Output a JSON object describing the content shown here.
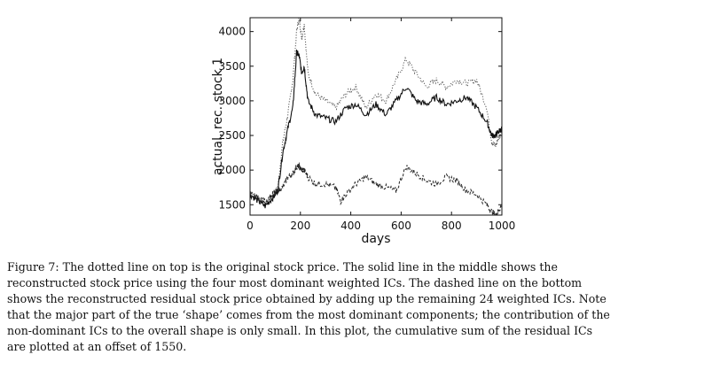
{
  "chart_data": {
    "type": "line",
    "xlabel": "days",
    "ylabel": "actual, rec. stock 1",
    "xlim": [
      0,
      1000
    ],
    "ylim": [
      1350,
      4200
    ],
    "xticks": [
      0,
      200,
      400,
      600,
      800,
      1000
    ],
    "yticks": [
      1500,
      2000,
      2500,
      3000,
      3500,
      4000
    ],
    "grid": false,
    "legend": "none",
    "series": [
      {
        "style": "dotted",
        "color": "#555555",
        "x": [
          0,
          30,
          60,
          90,
          110,
          130,
          150,
          170,
          185,
          195,
          205,
          215,
          230,
          260,
          300,
          340,
          380,
          420,
          460,
          500,
          540,
          580,
          620,
          660,
          700,
          740,
          780,
          820,
          860,
          900,
          940,
          960,
          975,
          985,
          1000
        ],
        "y": [
          1680,
          1600,
          1520,
          1620,
          1750,
          2400,
          2800,
          3300,
          4000,
          4200,
          3900,
          4100,
          3400,
          3100,
          3000,
          2900,
          3100,
          3200,
          2900,
          3100,
          3000,
          3300,
          3600,
          3400,
          3200,
          3300,
          3200,
          3300,
          3250,
          3300,
          2900,
          2400,
          2350,
          2450,
          2550
        ]
      },
      {
        "style": "solid",
        "color": "#111111",
        "x": [
          0,
          30,
          60,
          90,
          110,
          130,
          150,
          170,
          185,
          195,
          205,
          215,
          230,
          260,
          300,
          340,
          380,
          420,
          460,
          500,
          540,
          580,
          620,
          660,
          700,
          740,
          780,
          820,
          860,
          900,
          940,
          960,
          975,
          985,
          1000
        ],
        "y": [
          1650,
          1560,
          1480,
          1600,
          1700,
          2250,
          2600,
          2900,
          3700,
          3650,
          3400,
          3500,
          3000,
          2800,
          2750,
          2700,
          2900,
          2950,
          2800,
          2950,
          2800,
          3000,
          3200,
          3000,
          2950,
          3050,
          2950,
          3000,
          3050,
          2900,
          2700,
          2500,
          2500,
          2550,
          2600
        ]
      },
      {
        "style": "dashed",
        "color": "#222222",
        "x": [
          0,
          30,
          60,
          90,
          110,
          130,
          150,
          170,
          185,
          195,
          205,
          215,
          230,
          260,
          300,
          340,
          360,
          380,
          420,
          460,
          500,
          540,
          580,
          620,
          660,
          700,
          740,
          780,
          820,
          860,
          900,
          940,
          960,
          975,
          985,
          1000
        ],
        "y": [
          1650,
          1600,
          1550,
          1650,
          1700,
          1750,
          1900,
          1950,
          2050,
          2050,
          2000,
          2000,
          1900,
          1800,
          1800,
          1750,
          1550,
          1650,
          1800,
          1900,
          1800,
          1750,
          1700,
          2050,
          1950,
          1850,
          1800,
          1900,
          1850,
          1700,
          1650,
          1500,
          1400,
          1350,
          1400,
          1500
        ]
      }
    ]
  },
  "caption": {
    "lines": [
      "Figure 7:  The dotted line on top is the original stock price.  The solid line in the middle shows the",
      "reconstructed stock price using the four most dominant weighted ICs.  The dashed line on the bottom",
      "shows the reconstructed residual stock price obtained by adding up the remaining 24 weighted ICs.  Note",
      "that the major part of the true ‘shape’ comes from the most dominant components; the contribution of the",
      "non-dominant ICs to the overall shape is only small.  In this plot, the cumulative sum of the residual ICs",
      "are plotted at an offset of 1550."
    ]
  }
}
